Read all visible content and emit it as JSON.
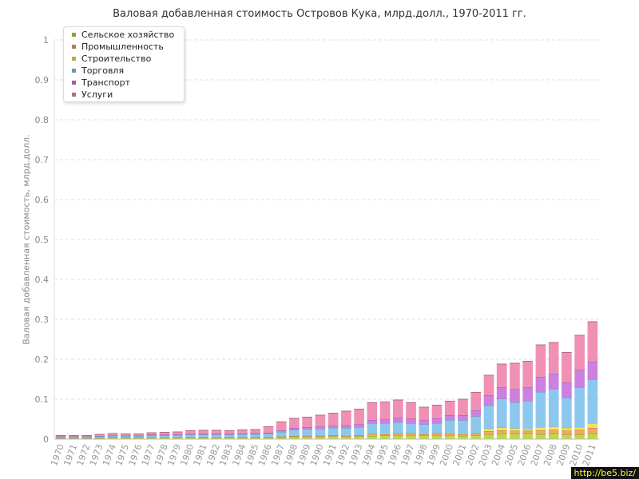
{
  "chart_data": {
    "type": "bar",
    "stacked": true,
    "title": "Валовая добавленная стоимость Островов Кука, млрд.долл., 1970-2011 гг.",
    "ylabel": "Валовая добавленная стоимость, млрд.долл.",
    "xlabel": "",
    "ylim": [
      0,
      1
    ],
    "yticks": [
      "0",
      "0.1",
      "0.2",
      "0.3",
      "0.4",
      "0.5",
      "0.6",
      "0.7",
      "0.8",
      "0.9",
      "1"
    ],
    "grid": true,
    "legend_position": "top-left",
    "categories": [
      "1970",
      "1971",
      "1972",
      "1973",
      "1974",
      "1975",
      "1976",
      "1977",
      "1978",
      "1979",
      "1980",
      "1981",
      "1982",
      "1983",
      "1984",
      "1985",
      "1986",
      "1987",
      "1988",
      "1989",
      "1990",
      "1991",
      "1992",
      "1993",
      "1994",
      "1995",
      "1996",
      "1997",
      "1998",
      "1999",
      "2000",
      "2001",
      "2002",
      "2003",
      "2004",
      "2005",
      "2006",
      "2007",
      "2008",
      "2009",
      "2010",
      "2011"
    ],
    "series": [
      {
        "name": "Сельское хозяйство",
        "color": "#c0d846",
        "values": [
          0.002,
          0.002,
          0.002,
          0.002,
          0.003,
          0.003,
          0.003,
          0.003,
          0.003,
          0.003,
          0.003,
          0.003,
          0.003,
          0.003,
          0.003,
          0.003,
          0.003,
          0.004,
          0.005,
          0.006,
          0.006,
          0.007,
          0.006,
          0.007,
          0.008,
          0.009,
          0.01,
          0.01,
          0.009,
          0.01,
          0.01,
          0.008,
          0.009,
          0.012,
          0.014,
          0.013,
          0.013,
          0.012,
          0.013,
          0.011,
          0.011,
          0.013
        ]
      },
      {
        "name": "Промышленность",
        "color": "#f0a868",
        "values": [
          0.001,
          0.001,
          0.001,
          0.001,
          0.001,
          0.001,
          0.001,
          0.001,
          0.001,
          0.001,
          0.001,
          0.001,
          0.001,
          0.001,
          0.001,
          0.001,
          0.001,
          0.002,
          0.002,
          0.002,
          0.002,
          0.002,
          0.002,
          0.002,
          0.003,
          0.003,
          0.003,
          0.003,
          0.003,
          0.003,
          0.004,
          0.004,
          0.004,
          0.008,
          0.008,
          0.008,
          0.008,
          0.01,
          0.01,
          0.01,
          0.012,
          0.015
        ]
      },
      {
        "name": "Строительство",
        "color": "#f5e25a",
        "values": [
          0.0,
          0.0,
          0.0,
          0.0,
          0.0,
          0.0,
          0.0,
          0.0,
          0.0,
          0.0,
          0.0,
          0.0,
          0.0,
          0.0,
          0.0,
          0.0,
          0.0,
          0.001,
          0.001,
          0.001,
          0.001,
          0.001,
          0.001,
          0.001,
          0.002,
          0.002,
          0.002,
          0.002,
          0.002,
          0.002,
          0.002,
          0.002,
          0.002,
          0.006,
          0.007,
          0.006,
          0.005,
          0.008,
          0.008,
          0.007,
          0.007,
          0.012
        ]
      },
      {
        "name": "Торговля",
        "color": "#8cc8ee",
        "values": [
          0.003,
          0.003,
          0.003,
          0.004,
          0.004,
          0.004,
          0.004,
          0.005,
          0.005,
          0.006,
          0.007,
          0.007,
          0.007,
          0.007,
          0.008,
          0.008,
          0.009,
          0.011,
          0.015,
          0.016,
          0.017,
          0.018,
          0.019,
          0.02,
          0.027,
          0.026,
          0.027,
          0.025,
          0.023,
          0.025,
          0.032,
          0.033,
          0.042,
          0.058,
          0.072,
          0.065,
          0.07,
          0.088,
          0.095,
          0.076,
          0.1,
          0.11
        ]
      },
      {
        "name": "Транспорт",
        "color": "#cc80e0",
        "values": [
          0.001,
          0.001,
          0.001,
          0.001,
          0.001,
          0.001,
          0.001,
          0.002,
          0.002,
          0.002,
          0.002,
          0.002,
          0.002,
          0.002,
          0.002,
          0.003,
          0.003,
          0.004,
          0.005,
          0.005,
          0.005,
          0.005,
          0.006,
          0.007,
          0.008,
          0.009,
          0.011,
          0.011,
          0.01,
          0.012,
          0.012,
          0.013,
          0.015,
          0.026,
          0.029,
          0.033,
          0.034,
          0.038,
          0.038,
          0.038,
          0.043,
          0.044
        ]
      },
      {
        "name": "Услуги",
        "color": "#f090b4",
        "values": [
          0.002,
          0.002,
          0.002,
          0.004,
          0.005,
          0.004,
          0.004,
          0.005,
          0.006,
          0.006,
          0.008,
          0.009,
          0.009,
          0.008,
          0.009,
          0.009,
          0.015,
          0.021,
          0.024,
          0.025,
          0.029,
          0.032,
          0.036,
          0.038,
          0.043,
          0.044,
          0.045,
          0.04,
          0.033,
          0.033,
          0.035,
          0.04,
          0.045,
          0.05,
          0.058,
          0.065,
          0.065,
          0.08,
          0.078,
          0.075,
          0.087,
          0.1
        ]
      }
    ]
  },
  "watermark": "http://be5.biz/"
}
